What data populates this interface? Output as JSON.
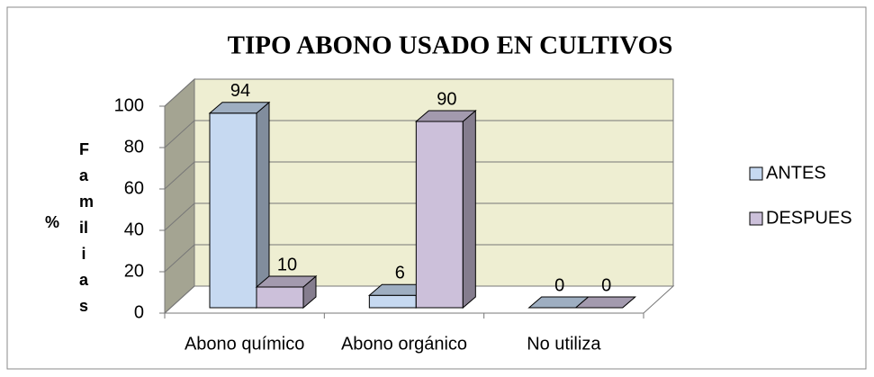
{
  "chart_data": {
    "type": "bar3d",
    "title": "TIPO ABONO USADO EN CULTIVOS",
    "ylabel_unit": "%",
    "ylabel": "Familias",
    "categories": [
      "Abono químico",
      "Abono orgánico",
      "No utiliza"
    ],
    "series": [
      {
        "name": "ANTES",
        "color": "#c6d9f1",
        "values": [
          94,
          6,
          0
        ]
      },
      {
        "name": "DESPUES",
        "color": "#ccc0da",
        "values": [
          10,
          90,
          0
        ]
      }
    ],
    "ylim": [
      0,
      100
    ],
    "yticks": [
      0,
      20,
      40,
      60,
      80,
      100
    ],
    "grid": true,
    "legend": "right"
  }
}
